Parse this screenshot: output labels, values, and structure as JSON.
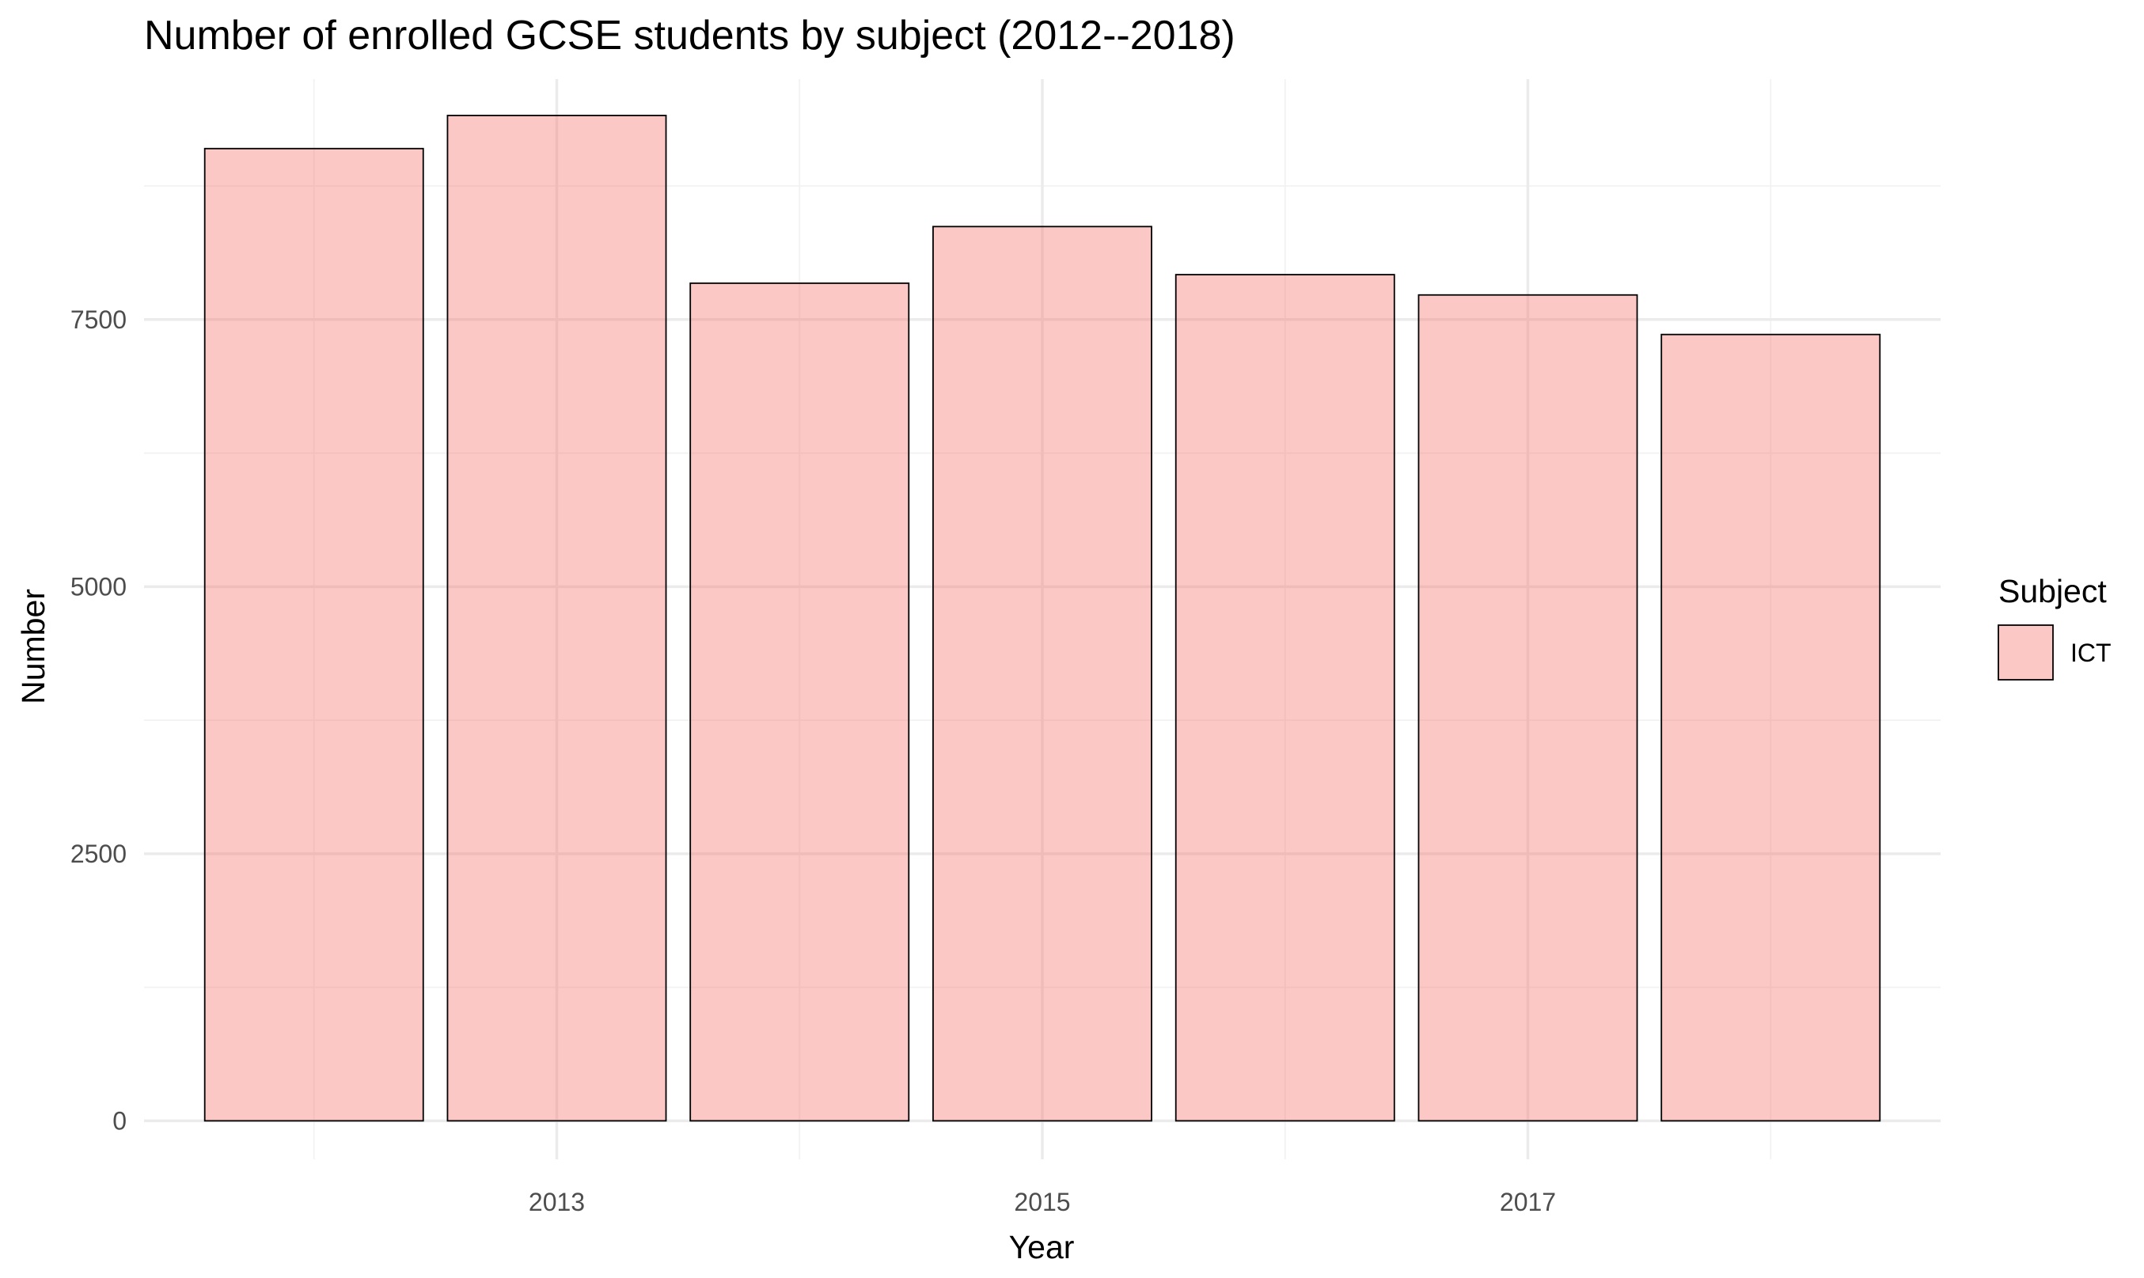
{
  "chart_data": {
    "type": "bar",
    "title": "Number of enrolled GCSE students by subject (2012--2018)",
    "xlabel": "Year",
    "ylabel": "Number",
    "categories": [
      2012,
      2013,
      2014,
      2015,
      2016,
      2017,
      2018
    ],
    "series": [
      {
        "name": "ICT",
        "values": [
          9100,
          9410,
          7840,
          8370,
          7920,
          7730,
          7360
        ]
      }
    ],
    "x_ticks": [
      2013,
      2015,
      2017
    ],
    "y_ticks": [
      0,
      2500,
      5000,
      7500
    ],
    "ylim": [
      -360,
      9750
    ],
    "xlim": [
      2011.3,
      2018.7
    ],
    "legend": {
      "title": "Subject",
      "placement": "right"
    },
    "grid": true,
    "colors": {
      "bar_fill": "#f8766d",
      "bar_fill_opacity": 0.4,
      "bar_stroke": "#000000"
    }
  }
}
